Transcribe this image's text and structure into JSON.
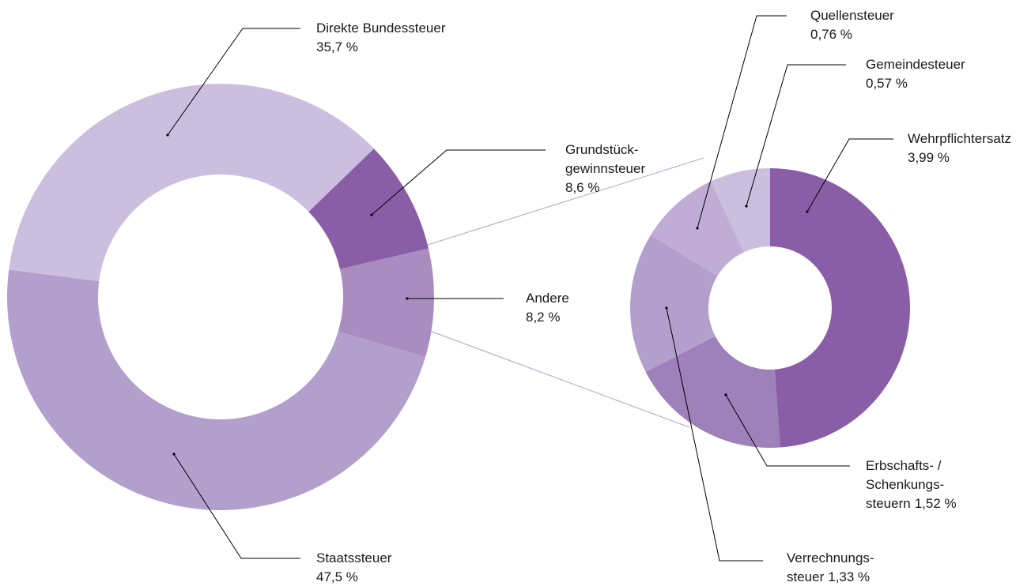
{
  "chart_data": [
    {
      "type": "pie",
      "donut": true,
      "categories": [
        "Grundstück-\ngewinnsteuer",
        "Andere",
        "Staatssteuer",
        "Direkte Bundessteuer"
      ],
      "values": [
        8.6,
        8.2,
        47.5,
        35.7
      ],
      "value_labels": [
        "8,6 %",
        "8,2 %",
        "47,5 %",
        "35,7 %"
      ],
      "colors": [
        "#8a5ea6",
        "#a98cc0",
        "#b39fcb",
        "#cbbede"
      ]
    },
    {
      "type": "pie",
      "donut": true,
      "categories": [
        "Wehrpflichtersatz",
        "Erbschafts- /\nSchenkungs-\nsteuern",
        "Verrechnungs-\nsteuer",
        "Quellensteuer",
        "Gemeindesteuer"
      ],
      "values": [
        3.99,
        1.52,
        1.33,
        0.76,
        0.57
      ],
      "value_labels": [
        "3,99 %",
        "1,52 %",
        "1,33 %",
        "0,76 %",
        "0,57 %"
      ],
      "colors": [
        "#8a5ea6",
        "#9e80ba",
        "#b39fcb",
        "#c0acd4",
        "#cbbede"
      ]
    }
  ]
}
